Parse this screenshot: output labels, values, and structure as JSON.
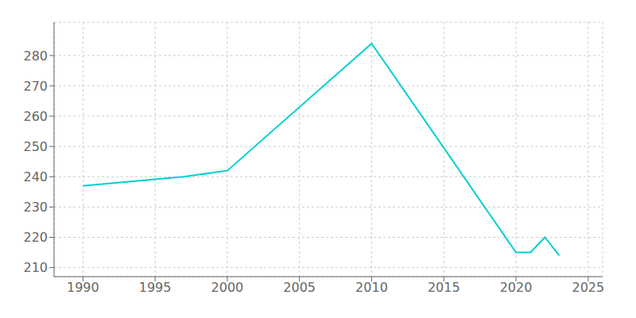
{
  "chart_data": {
    "type": "line",
    "x": [
      1990,
      1997,
      2000,
      2010,
      2020,
      2021,
      2022,
      2023
    ],
    "values": [
      237,
      240,
      242,
      284,
      215,
      215,
      220,
      214
    ],
    "color": "#00CED1",
    "xlim": [
      1988,
      2026
    ],
    "ylim": [
      207,
      291
    ],
    "xticks": [
      1990,
      1995,
      2000,
      2005,
      2010,
      2015,
      2020,
      2025
    ],
    "yticks": [
      210,
      220,
      230,
      240,
      250,
      260,
      270,
      280
    ],
    "grid": true
  }
}
